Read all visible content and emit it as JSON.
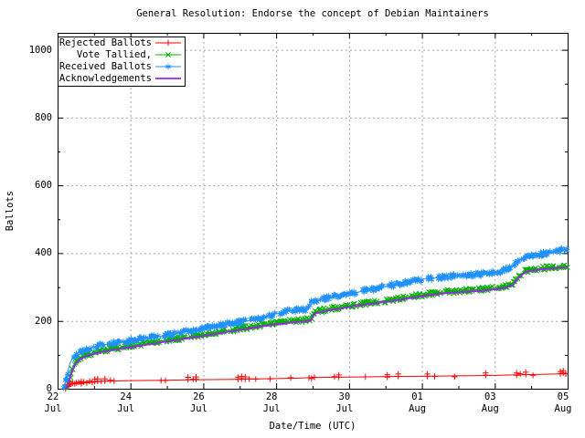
{
  "chart_data": {
    "type": "line",
    "title": "General Resolution: Endorse the concept of Debian Maintainers",
    "xlabel": "Date/Time (UTC)",
    "ylabel": "Ballots",
    "xlim_days": [
      0,
      14
    ],
    "ylim": [
      0,
      1050
    ],
    "grid": "dashed-major",
    "legend_position": "top-left-box",
    "y_ticks": [
      0,
      200,
      400,
      600,
      800,
      1000
    ],
    "x_ticks": [
      {
        "day": 0,
        "top": "22",
        "bottom": "Jul"
      },
      {
        "day": 2,
        "top": "24",
        "bottom": "Jul"
      },
      {
        "day": 4,
        "top": "26",
        "bottom": "Jul"
      },
      {
        "day": 6,
        "top": "28",
        "bottom": "Jul"
      },
      {
        "day": 8,
        "top": "30",
        "bottom": "Jul"
      },
      {
        "day": 10,
        "top": "01",
        "bottom": "Aug"
      },
      {
        "day": 12,
        "top": "03",
        "bottom": "Aug"
      },
      {
        "day": 14,
        "top": "05",
        "bottom": "Aug"
      }
    ],
    "colors": {
      "grid": "#a8a8a8",
      "border": "#000000",
      "background": "#ffffff",
      "legend_background": "#ffffff"
    },
    "series": [
      {
        "name": "Rejected Ballots",
        "color": "#ff0000",
        "marker": "plus",
        "dense": false,
        "seed": 11,
        "points": [
          [
            0.2,
            0
          ],
          [
            0.25,
            5
          ],
          [
            0.3,
            8
          ],
          [
            0.35,
            12
          ],
          [
            0.45,
            15
          ],
          [
            0.6,
            17
          ],
          [
            0.8,
            19
          ],
          [
            1.0,
            20
          ],
          [
            1.3,
            22
          ],
          [
            1.6,
            23
          ],
          [
            2.0,
            24
          ],
          [
            2.9,
            25
          ],
          [
            3.6,
            26
          ],
          [
            4.2,
            27
          ],
          [
            5.0,
            28
          ],
          [
            5.5,
            29
          ],
          [
            6.0,
            30
          ],
          [
            6.5,
            31
          ],
          [
            7.0,
            33
          ],
          [
            7.6,
            34
          ],
          [
            8.5,
            35
          ],
          [
            9.1,
            36
          ],
          [
            10.2,
            37
          ],
          [
            11.0,
            38
          ],
          [
            11.8,
            39
          ],
          [
            12.7,
            41
          ],
          [
            13.1,
            42
          ],
          [
            13.8,
            44
          ],
          [
            14.0,
            45
          ]
        ],
        "marker_x": [
          0.22,
          0.26,
          0.3,
          0.34,
          0.38,
          0.42,
          0.47,
          0.52,
          0.58,
          0.65,
          0.72,
          0.8,
          0.88,
          0.95,
          1.02,
          1.1,
          1.2,
          1.3,
          1.45,
          1.55,
          2.84,
          2.96,
          3.58,
          3.72,
          3.8,
          4.95,
          5.05,
          5.15,
          5.26,
          5.44,
          5.83,
          6.4,
          6.9,
          6.97,
          7.05,
          7.6,
          7.72,
          8.45,
          9.05,
          9.35,
          10.15,
          10.35,
          10.9,
          11.75,
          12.6,
          12.7,
          12.85,
          13.05,
          13.8,
          13.88,
          13.95
        ]
      },
      {
        "name": "Vote Tallied,",
        "color": "#00b000",
        "marker": "cross",
        "dense": true,
        "seed": 23,
        "points": [
          [
            0.2,
            0
          ],
          [
            0.25,
            12
          ],
          [
            0.3,
            25
          ],
          [
            0.38,
            50
          ],
          [
            0.45,
            70
          ],
          [
            0.55,
            85
          ],
          [
            0.65,
            93
          ],
          [
            0.8,
            100
          ],
          [
            1.0,
            107
          ],
          [
            1.3,
            114
          ],
          [
            1.6,
            120
          ],
          [
            2.0,
            126
          ],
          [
            2.4,
            133
          ],
          [
            2.8,
            140
          ],
          [
            3.2,
            147
          ],
          [
            3.6,
            153
          ],
          [
            4.0,
            160
          ],
          [
            4.4,
            167
          ],
          [
            4.8,
            174
          ],
          [
            5.2,
            181
          ],
          [
            5.6,
            188
          ],
          [
            6.0,
            194
          ],
          [
            6.4,
            199
          ],
          [
            6.8,
            203
          ],
          [
            6.95,
            205
          ],
          [
            7.05,
            225
          ],
          [
            7.3,
            232
          ],
          [
            7.6,
            238
          ],
          [
            8.0,
            245
          ],
          [
            8.5,
            253
          ],
          [
            9.0,
            260
          ],
          [
            9.5,
            268
          ],
          [
            10.0,
            277
          ],
          [
            10.4,
            283
          ],
          [
            10.8,
            287
          ],
          [
            11.2,
            290
          ],
          [
            11.6,
            293
          ],
          [
            12.0,
            297
          ],
          [
            12.3,
            302
          ],
          [
            12.5,
            310
          ],
          [
            12.65,
            330
          ],
          [
            12.8,
            345
          ],
          [
            13.0,
            352
          ],
          [
            13.3,
            356
          ],
          [
            13.6,
            358
          ],
          [
            14.0,
            362
          ]
        ]
      },
      {
        "name": "Received Ballots",
        "color": "#1e90ff",
        "marker": "asterisk",
        "dense": true,
        "seed": 7,
        "points": [
          [
            0.15,
            0
          ],
          [
            0.2,
            15
          ],
          [
            0.25,
            35
          ],
          [
            0.3,
            60
          ],
          [
            0.35,
            78
          ],
          [
            0.42,
            92
          ],
          [
            0.5,
            100
          ],
          [
            0.6,
            107
          ],
          [
            0.7,
            112
          ],
          [
            0.85,
            118
          ],
          [
            1.0,
            123
          ],
          [
            1.2,
            129
          ],
          [
            1.5,
            134
          ],
          [
            1.8,
            139
          ],
          [
            2.0,
            142
          ],
          [
            2.3,
            147
          ],
          [
            2.7,
            153
          ],
          [
            3.0,
            158
          ],
          [
            3.4,
            167
          ],
          [
            3.7,
            173
          ],
          [
            4.0,
            180
          ],
          [
            4.3,
            186
          ],
          [
            4.7,
            192
          ],
          [
            5.0,
            196
          ],
          [
            5.4,
            203
          ],
          [
            5.7,
            211
          ],
          [
            6.0,
            222
          ],
          [
            6.3,
            228
          ],
          [
            6.6,
            232
          ],
          [
            6.85,
            235
          ],
          [
            6.95,
            255
          ],
          [
            7.1,
            260
          ],
          [
            7.3,
            265
          ],
          [
            7.6,
            272
          ],
          [
            8.0,
            280
          ],
          [
            8.4,
            288
          ],
          [
            8.7,
            295
          ],
          [
            9.0,
            302
          ],
          [
            9.4,
            310
          ],
          [
            9.7,
            316
          ],
          [
            10.0,
            322
          ],
          [
            10.3,
            327
          ],
          [
            10.6,
            330
          ],
          [
            11.0,
            333
          ],
          [
            11.4,
            336
          ],
          [
            11.8,
            340
          ],
          [
            12.0,
            343
          ],
          [
            12.2,
            348
          ],
          [
            12.4,
            355
          ],
          [
            12.55,
            368
          ],
          [
            12.7,
            380
          ],
          [
            12.85,
            388
          ],
          [
            13.0,
            393
          ],
          [
            13.3,
            398
          ],
          [
            13.6,
            403
          ],
          [
            14.0,
            412
          ]
        ]
      },
      {
        "name": "Acknowledgements",
        "color": "#a020f0",
        "marker": "none",
        "dense": false,
        "seed": 3,
        "points": [
          [
            0.22,
            0
          ],
          [
            0.3,
            20
          ],
          [
            0.38,
            45
          ],
          [
            0.45,
            65
          ],
          [
            0.55,
            80
          ],
          [
            0.65,
            89
          ],
          [
            0.8,
            96
          ],
          [
            1.0,
            103
          ],
          [
            1.3,
            110
          ],
          [
            1.6,
            116
          ],
          [
            2.0,
            122
          ],
          [
            2.4,
            129
          ],
          [
            2.8,
            136
          ],
          [
            3.2,
            143
          ],
          [
            3.6,
            149
          ],
          [
            4.0,
            156
          ],
          [
            4.4,
            163
          ],
          [
            4.8,
            170
          ],
          [
            5.2,
            177
          ],
          [
            5.6,
            184
          ],
          [
            6.0,
            190
          ],
          [
            6.4,
            195
          ],
          [
            6.8,
            199
          ],
          [
            6.95,
            201
          ],
          [
            7.05,
            221
          ],
          [
            7.3,
            228
          ],
          [
            7.6,
            234
          ],
          [
            8.0,
            241
          ],
          [
            8.5,
            249
          ],
          [
            9.0,
            256
          ],
          [
            9.5,
            264
          ],
          [
            10.0,
            273
          ],
          [
            10.4,
            279
          ],
          [
            10.8,
            283
          ],
          [
            11.2,
            286
          ],
          [
            11.6,
            289
          ],
          [
            12.0,
            293
          ],
          [
            12.3,
            298
          ],
          [
            12.5,
            306
          ],
          [
            12.65,
            326
          ],
          [
            12.8,
            341
          ],
          [
            13.0,
            348
          ],
          [
            13.3,
            352
          ],
          [
            13.6,
            355
          ],
          [
            14.0,
            358
          ]
        ]
      }
    ]
  }
}
